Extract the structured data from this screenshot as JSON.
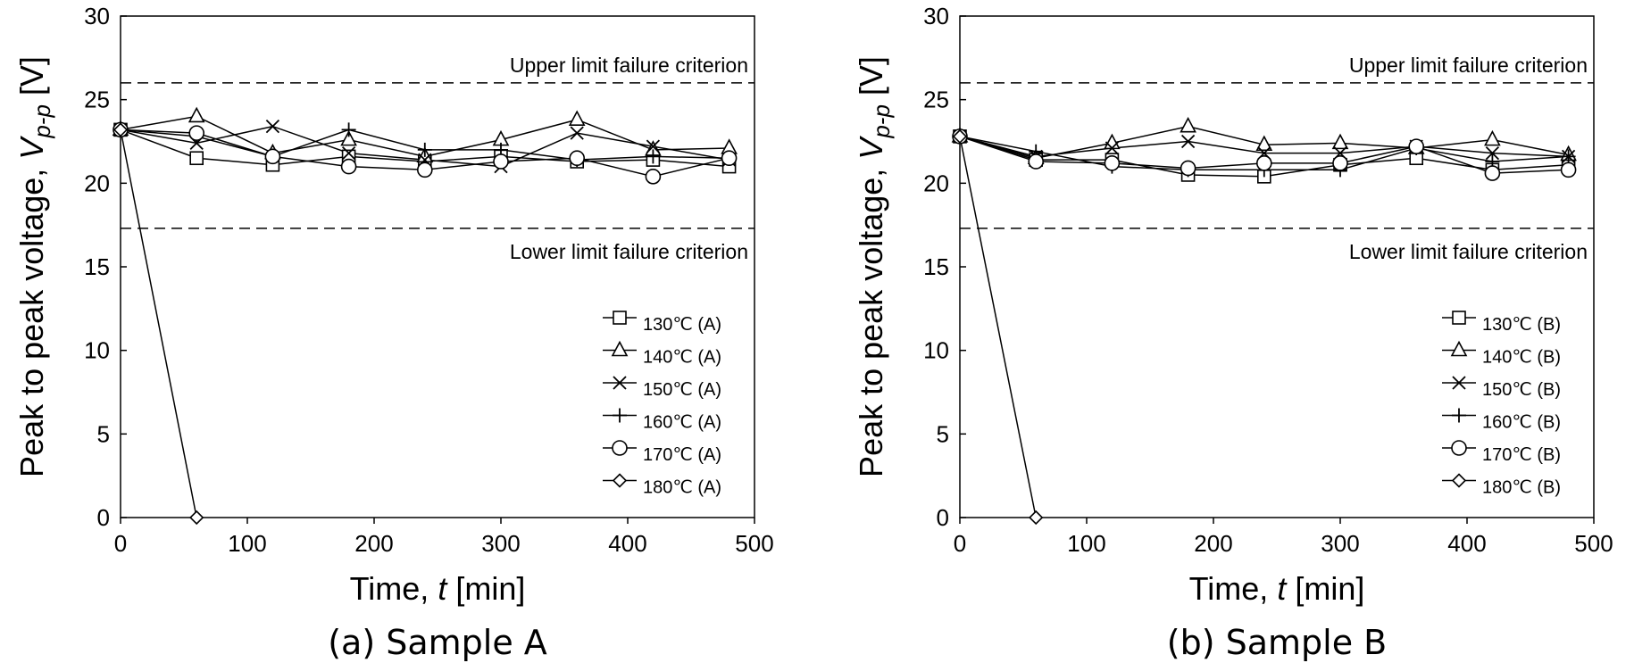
{
  "chart_data": [
    {
      "type": "line",
      "caption": "(a) Sample A",
      "xlabel": {
        "prefix": "Time, ",
        "symbol": "t",
        "suffix": " [min]"
      },
      "ylabel": {
        "prefix": "Peak to peak voltage, ",
        "symbol": "V",
        "subscript": "p-p",
        "suffix": " [V]"
      },
      "xlim": [
        0,
        500
      ],
      "ylim": [
        0,
        30
      ],
      "xticks": [
        0,
        100,
        200,
        300,
        400,
        500
      ],
      "yticks": [
        0,
        5,
        10,
        15,
        20,
        25,
        30
      ],
      "grid": false,
      "legend_position": "bottom-right",
      "criteria": [
        {
          "label": "Upper limit failure criterion",
          "value": 26.0
        },
        {
          "label": "Lower limit failure criterion",
          "value": 17.3
        }
      ],
      "x": [
        0,
        60,
        120,
        180,
        240,
        300,
        360,
        420,
        480
      ],
      "series": [
        {
          "name": "130℃ (A)",
          "marker": "square",
          "values": [
            23.2,
            21.5,
            21.1,
            21.6,
            21.3,
            21.6,
            21.3,
            21.4,
            21.0
          ]
        },
        {
          "name": "140℃ (A)",
          "marker": "triangle",
          "values": [
            23.2,
            24.0,
            21.8,
            22.6,
            21.6,
            22.6,
            23.8,
            22.0,
            22.1
          ]
        },
        {
          "name": "150℃ (A)",
          "marker": "x",
          "values": [
            23.2,
            22.4,
            23.4,
            21.8,
            21.4,
            21.0,
            23.0,
            22.2,
            21.4
          ]
        },
        {
          "name": "160℃ (A)",
          "marker": "plus",
          "values": [
            23.2,
            22.8,
            21.6,
            23.2,
            22.0,
            22.0,
            21.4,
            21.6,
            21.5
          ]
        },
        {
          "name": "170℃ (A)",
          "marker": "circle",
          "values": [
            23.2,
            23.0,
            21.6,
            21.0,
            20.8,
            21.3,
            21.5,
            20.4,
            21.5
          ]
        },
        {
          "name": "180℃ (A)",
          "marker": "diamond",
          "x": [
            0,
            60
          ],
          "values": [
            23.2,
            0
          ]
        }
      ]
    },
    {
      "type": "line",
      "caption": "(b) Sample B",
      "xlabel": {
        "prefix": "Time, ",
        "symbol": "t",
        "suffix": " [min]"
      },
      "ylabel": {
        "prefix": "Peak to peak voltage, ",
        "symbol": "V",
        "subscript": "p-p",
        "suffix": " [V]"
      },
      "xlim": [
        0,
        500
      ],
      "ylim": [
        0,
        30
      ],
      "xticks": [
        0,
        100,
        200,
        300,
        400,
        500
      ],
      "yticks": [
        0,
        5,
        10,
        15,
        20,
        25,
        30
      ],
      "grid": false,
      "legend_position": "bottom-right",
      "criteria": [
        {
          "label": "Upper limit failure criterion",
          "value": 26.0
        },
        {
          "label": "Lower limit failure criterion",
          "value": 17.3
        }
      ],
      "x": [
        0,
        60,
        120,
        180,
        240,
        300,
        360,
        420,
        480
      ],
      "series": [
        {
          "name": "130℃ (B)",
          "marker": "square",
          "values": [
            22.8,
            21.4,
            21.4,
            20.5,
            20.4,
            21.1,
            21.5,
            20.8,
            21.1
          ]
        },
        {
          "name": "140℃ (B)",
          "marker": "triangle",
          "values": [
            22.8,
            21.5,
            22.4,
            23.4,
            22.3,
            22.4,
            22.1,
            22.6,
            21.7
          ]
        },
        {
          "name": "150℃ (B)",
          "marker": "x",
          "values": [
            22.8,
            21.6,
            22.1,
            22.5,
            21.8,
            21.8,
            22.2,
            21.8,
            21.6
          ]
        },
        {
          "name": "160℃ (B)",
          "marker": "plus",
          "values": [
            22.8,
            21.9,
            21.0,
            20.8,
            20.8,
            20.8,
            22.1,
            21.3,
            21.6
          ]
        },
        {
          "name": "170℃ (B)",
          "marker": "circle",
          "values": [
            22.8,
            21.3,
            21.2,
            20.9,
            21.2,
            21.2,
            22.2,
            20.6,
            20.8
          ]
        },
        {
          "name": "180℃ (B)",
          "marker": "diamond",
          "x": [
            0,
            60
          ],
          "values": [
            22.8,
            0
          ]
        }
      ]
    }
  ]
}
